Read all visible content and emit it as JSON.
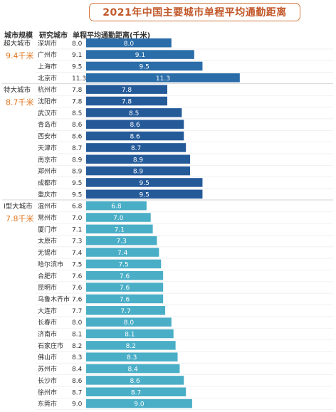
{
  "title": "2021年中国主要城市单程平均通勤距离",
  "headers": {
    "tier": "城市规模",
    "city": "研究城市",
    "value": "单程平均通勤距离(千米)"
  },
  "colors": {
    "title": "#c2582a",
    "tier_average": "#e0761f",
    "tier_super": "#2a6da8",
    "tier_special": "#255a99",
    "tier_type1": "#4aaec7",
    "value_label": "#ffffff"
  },
  "chart_data": {
    "type": "bar",
    "orientation": "horizontal",
    "title": "2021年中国主要城市单程平均通勤距离",
    "xlabel": "单程平均通勤距离(千米)",
    "groups": [
      {
        "name": "超大城市",
        "average_label": "9.4千米",
        "color": "#2a6da8",
        "categories": [
          "深圳市",
          "广州市",
          "上海市",
          "北京市"
        ],
        "values": [
          8.0,
          9.1,
          9.5,
          11.3
        ]
      },
      {
        "name": "特大城市",
        "average_label": "8.7千米",
        "color": "#255a99",
        "categories": [
          "杭州市",
          "沈阳市",
          "武汉市",
          "青岛市",
          "西安市",
          "天津市",
          "南京市",
          "郑州市",
          "成都市",
          "重庆市"
        ],
        "values": [
          7.8,
          7.8,
          8.5,
          8.6,
          8.6,
          8.7,
          8.9,
          8.9,
          9.5,
          9.5
        ]
      },
      {
        "name": "Ⅰ型大城市",
        "average_label": "7.8千米",
        "color": "#4aaec7",
        "categories": [
          "温州市",
          "常州市",
          "厦门市",
          "太原市",
          "无锡市",
          "哈尔滨市",
          "合肥市",
          "昆明市",
          "乌鲁木齐市",
          "大连市",
          "长春市",
          "济南市",
          "石家庄市",
          "佛山市",
          "苏州市",
          "长沙市",
          "徐州市",
          "东莞市"
        ],
        "values": [
          6.8,
          7.0,
          7.1,
          7.3,
          7.4,
          7.5,
          7.6,
          7.6,
          7.6,
          7.7,
          8.0,
          8.1,
          8.2,
          8.3,
          8.4,
          8.6,
          8.7,
          9.0
        ]
      }
    ]
  }
}
